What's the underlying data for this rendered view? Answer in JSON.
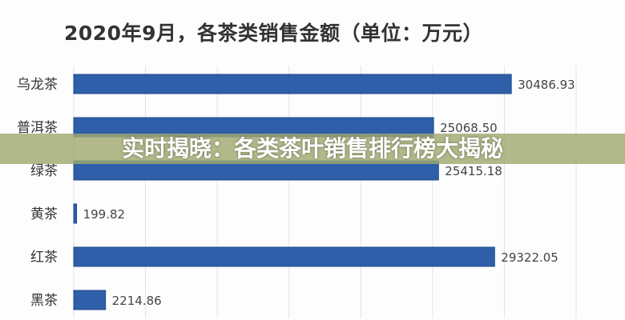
{
  "chart_data": {
    "type": "bar",
    "orientation": "horizontal",
    "title": "2020年9月，各茶类销售金额（单位：万元）",
    "categories": [
      "乌龙茶",
      "普洱茶",
      "绿茶",
      "黄茶",
      "红茶",
      "黑茶"
    ],
    "values": [
      30486.93,
      25068.5,
      25415.18,
      199.82,
      29322.05,
      2214.86
    ],
    "value_labels": [
      "30486.93",
      "25068.50",
      "25415.18",
      "199.82",
      "29322.05",
      "2214.86"
    ],
    "xlim": [
      0,
      35000
    ],
    "grid": "vertical",
    "bar_color": "#2e5fa8"
  },
  "banner": {
    "text": "实时揭晓：各类茶叶销售排行榜大揭秘",
    "color": "#a0a870"
  }
}
